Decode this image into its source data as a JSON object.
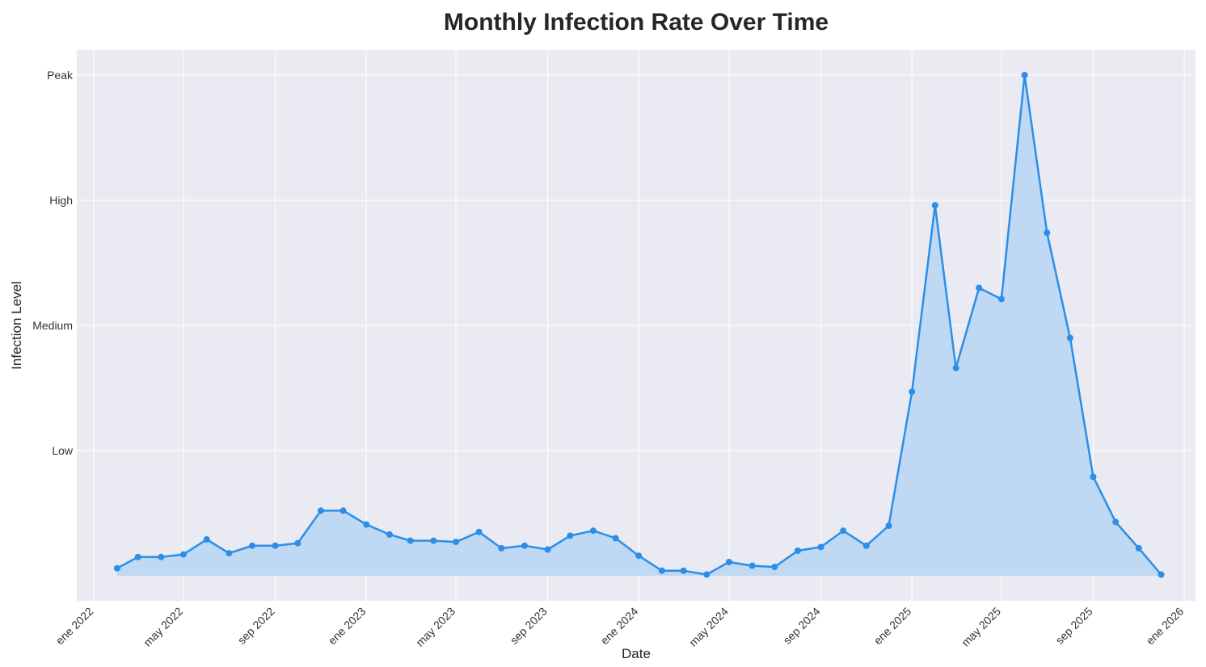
{
  "chart_data": {
    "type": "area",
    "title": "Monthly Infection Rate Over Time",
    "xlabel": "Date",
    "ylabel": "Infection Level",
    "x_ticks": [
      "ene 2022",
      "may 2022",
      "sep 2022",
      "ene 2023",
      "may 2023",
      "sep 2023",
      "ene 2024",
      "may 2024",
      "sep 2024",
      "ene 2025",
      "may 2025",
      "sep 2025",
      "ene 2026"
    ],
    "x_tick_dates": [
      "2022-01-01",
      "2022-05-01",
      "2022-09-01",
      "2023-01-01",
      "2023-05-01",
      "2023-09-01",
      "2024-01-01",
      "2024-05-01",
      "2024-09-01",
      "2025-01-01",
      "2025-05-01",
      "2025-09-01",
      "2026-01-01"
    ],
    "xlim": [
      "2021-12-09",
      "2026-01-16"
    ],
    "y_ticks": [
      {
        "label": "Low",
        "value": 1
      },
      {
        "label": "Medium",
        "value": 2
      },
      {
        "label": "High",
        "value": 3
      },
      {
        "label": "Peak",
        "value": 4
      }
    ],
    "ylim": [
      -0.2,
      4.2
    ],
    "grid": true,
    "line_color": "#2b8ee8",
    "fill_color": "#bfd8f3",
    "plot_background": "#eaeaf2",
    "series": [
      {
        "x": [
          "2022-02-01",
          "2022-03-01",
          "2022-04-01",
          "2022-05-01",
          "2022-06-01",
          "2022-07-01",
          "2022-08-01",
          "2022-09-01",
          "2022-10-01",
          "2022-11-01",
          "2022-12-01",
          "2023-01-01",
          "2023-02-01",
          "2023-03-01",
          "2023-04-01",
          "2023-05-01",
          "2023-06-01",
          "2023-07-01",
          "2023-08-01",
          "2023-09-01",
          "2023-10-01",
          "2023-11-01",
          "2023-12-01",
          "2024-01-01",
          "2024-02-01",
          "2024-03-01",
          "2024-04-01",
          "2024-05-01",
          "2024-06-01",
          "2024-07-01",
          "2024-08-01",
          "2024-09-01",
          "2024-10-01",
          "2024-11-01",
          "2024-12-01",
          "2025-01-01",
          "2025-02-01",
          "2025-03-01",
          "2025-04-01",
          "2025-05-01",
          "2025-06-01",
          "2025-07-01",
          "2025-08-01",
          "2025-09-01",
          "2025-10-01",
          "2025-11-01",
          "2025-12-01"
        ],
        "values": [
          0.06,
          0.15,
          0.15,
          0.17,
          0.29,
          0.18,
          0.24,
          0.24,
          0.26,
          0.52,
          0.52,
          0.41,
          0.33,
          0.28,
          0.28,
          0.27,
          0.35,
          0.22,
          0.24,
          0.21,
          0.32,
          0.36,
          0.3,
          0.16,
          0.04,
          0.04,
          0.01,
          0.11,
          0.08,
          0.07,
          0.2,
          0.23,
          0.36,
          0.24,
          0.4,
          1.47,
          2.96,
          1.66,
          2.3,
          2.21,
          4.0,
          2.74,
          1.9,
          0.79,
          0.43,
          0.22,
          0.01
        ]
      }
    ]
  }
}
